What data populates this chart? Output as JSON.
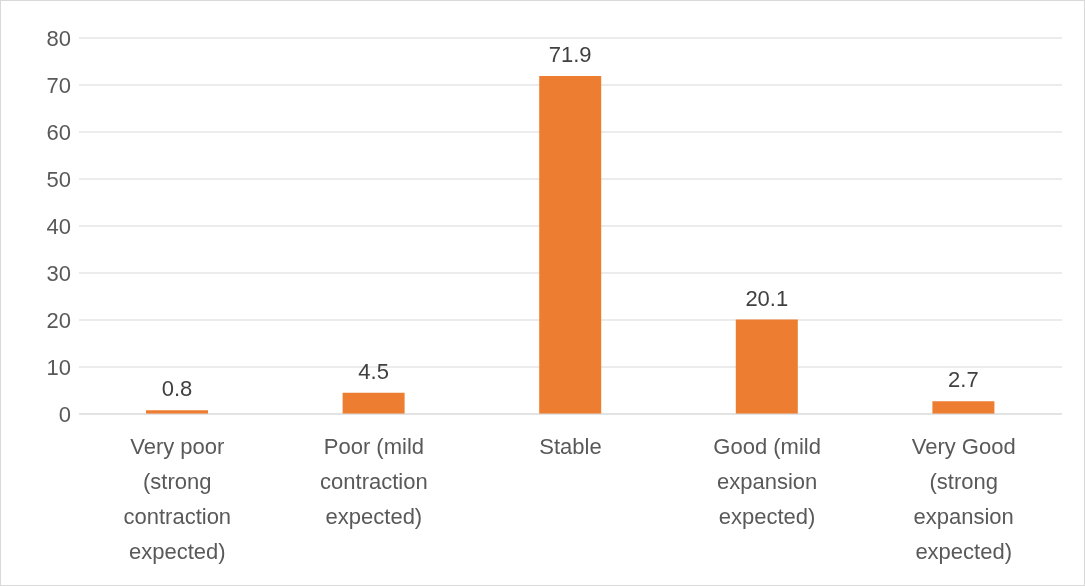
{
  "chart_data": {
    "type": "bar",
    "categories": [
      "Very poor (strong contraction expected)",
      "Poor (mild contraction expected)",
      "Stable",
      "Good (mild expansion expected)",
      "Very Good (strong expansion expected)"
    ],
    "values": [
      0.8,
      4.5,
      71.9,
      20.1,
      2.7
    ],
    "color": "#ed7d31",
    "ylim": [
      0,
      80
    ],
    "yticks": [
      0,
      10,
      20,
      30,
      40,
      50,
      60,
      70,
      80
    ],
    "grid": "y",
    "data_labels": true
  }
}
